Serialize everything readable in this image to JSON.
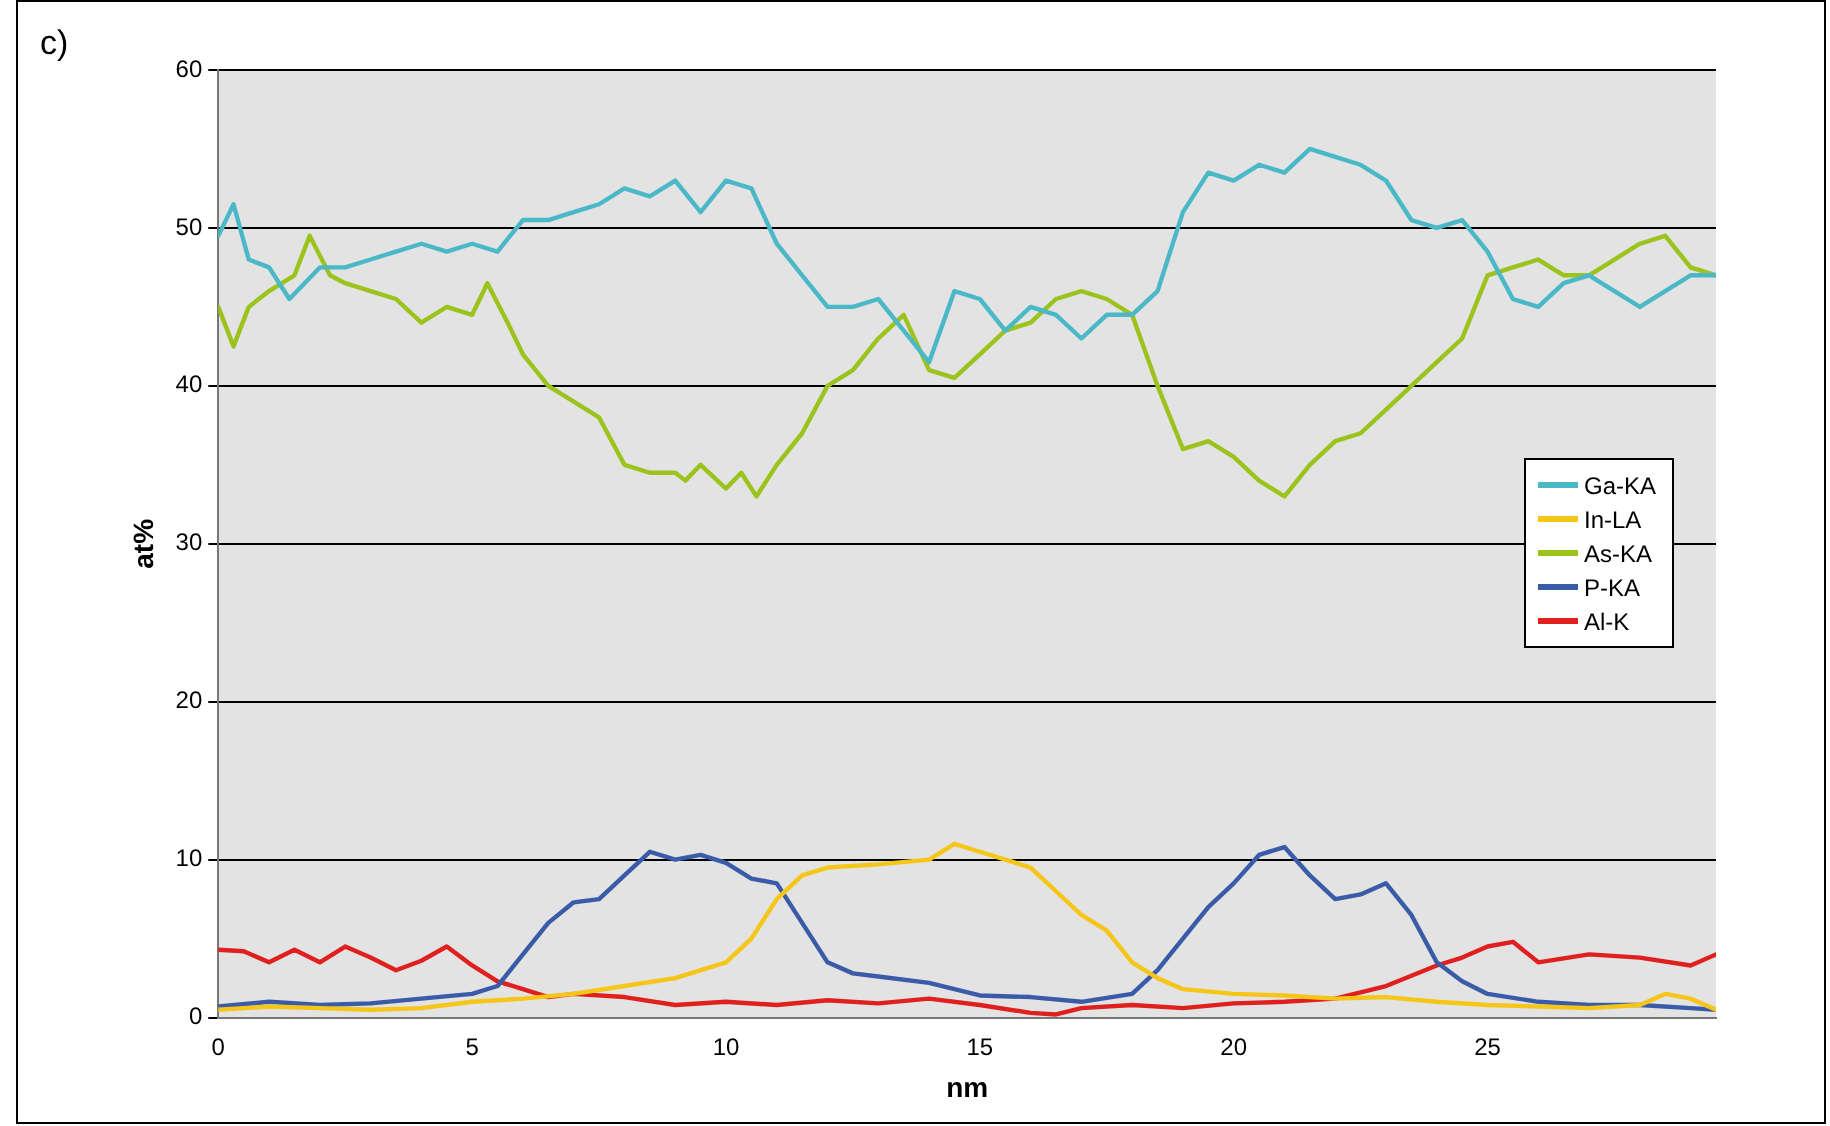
{
  "chart_data": {
    "type": "line",
    "title": "c)",
    "xlabel": "nm",
    "ylabel": "at%",
    "xlim": [
      0,
      29.5
    ],
    "xticks": [
      0,
      5,
      10,
      15,
      20,
      25
    ],
    "ylim": [
      0,
      60
    ],
    "yticks": [
      0,
      10,
      20,
      30,
      40,
      50,
      60
    ],
    "grid": "y",
    "legend": "right",
    "marker": "none",
    "line_style": "solid",
    "series": [
      {
        "name": "Ga-KA",
        "color": "#4bb8c8",
        "x": [
          0,
          0.3,
          0.6,
          1,
          1.4,
          2,
          2.5,
          3,
          3.5,
          4,
          4.5,
          5,
          5.5,
          6,
          6.5,
          7,
          7.5,
          8,
          8.5,
          9,
          9.5,
          10,
          10.5,
          11,
          11.5,
          12,
          12.5,
          13,
          13.5,
          14,
          14.5,
          15,
          15.5,
          16,
          16.5,
          17,
          17.5,
          18,
          18.5,
          19,
          19.5,
          20,
          20.5,
          21,
          21.5,
          22,
          22.5,
          23,
          23.5,
          24,
          24.5,
          25,
          25.5,
          26,
          26.5,
          27,
          27.5,
          28,
          28.5,
          29,
          29.5
        ],
        "values": [
          49.5,
          51.5,
          48,
          47.5,
          45.5,
          47.5,
          47.5,
          48,
          48.5,
          49,
          48.5,
          49,
          48.5,
          50.5,
          50.5,
          51,
          51.5,
          52.5,
          52,
          53,
          51,
          53,
          52.5,
          49,
          47,
          45,
          45,
          45.5,
          43.5,
          41.5,
          46,
          45.5,
          43.5,
          45,
          44.5,
          43,
          44.5,
          44.5,
          46,
          51,
          53.5,
          53,
          54,
          53.5,
          55,
          54.5,
          54,
          53,
          50.5,
          50,
          50.5,
          48.5,
          45.5,
          45,
          46.5,
          47,
          46,
          45,
          46,
          47,
          47
        ]
      },
      {
        "name": "In-LA",
        "color": "#f5c518",
        "x": [
          0,
          1,
          2,
          3,
          4,
          5,
          6,
          7,
          8,
          9,
          10,
          10.5,
          11,
          11.5,
          12,
          13,
          14,
          14.5,
          15,
          15.5,
          16,
          16.5,
          17,
          17.5,
          18,
          18.5,
          19,
          20,
          21,
          22,
          23,
          24,
          25,
          26,
          27,
          28,
          28.5,
          29,
          29.5
        ],
        "values": [
          0.5,
          0.7,
          0.6,
          0.5,
          0.6,
          1,
          1.2,
          1.5,
          2,
          2.5,
          3.5,
          5,
          7.5,
          9,
          9.5,
          9.7,
          10,
          11,
          10.5,
          10,
          9.5,
          8,
          6.5,
          5.5,
          3.5,
          2.5,
          1.8,
          1.5,
          1.4,
          1.2,
          1.3,
          1,
          0.8,
          0.7,
          0.6,
          0.8,
          1.5,
          1.2,
          0.5
        ]
      },
      {
        "name": "As-KA",
        "color": "#9bc31c",
        "x": [
          0,
          0.3,
          0.6,
          1,
          1.5,
          1.8,
          2.2,
          2.5,
          3,
          3.5,
          4,
          4.5,
          5,
          5.3,
          5.7,
          6,
          6.5,
          7,
          7.5,
          8,
          8.5,
          9,
          9.2,
          9.5,
          10,
          10.3,
          10.6,
          11,
          11.5,
          12,
          12.5,
          13,
          13.5,
          14,
          14.5,
          15,
          15.5,
          16,
          16.5,
          17,
          17.5,
          18,
          18.5,
          19,
          19.5,
          20,
          20.5,
          21,
          21.5,
          22,
          22.5,
          23,
          23.5,
          24,
          24.5,
          25,
          25.5,
          26,
          26.5,
          27,
          27.5,
          28,
          28.5,
          29,
          29.5
        ],
        "values": [
          45,
          42.5,
          45,
          46,
          47,
          49.5,
          47,
          46.5,
          46,
          45.5,
          44,
          45,
          44.5,
          46.5,
          44,
          42,
          40,
          39,
          38,
          35,
          34.5,
          34.5,
          34,
          35,
          33.5,
          34.5,
          33,
          35,
          37,
          40,
          41,
          43,
          44.5,
          41,
          40.5,
          42,
          43.5,
          44,
          45.5,
          46,
          45.5,
          44.5,
          40,
          36,
          36.5,
          35.5,
          34,
          33,
          35,
          36.5,
          37,
          38.5,
          40,
          41.5,
          43,
          47,
          47.5,
          48,
          47,
          47,
          48,
          49,
          49.5,
          47.5,
          47
        ]
      },
      {
        "name": "P-KA",
        "color": "#3a5ba8",
        "x": [
          0,
          1,
          2,
          3,
          4,
          5,
          5.5,
          6,
          6.5,
          7,
          7.5,
          8,
          8.5,
          9,
          9.5,
          10,
          10.5,
          11,
          11.5,
          12,
          12.5,
          13,
          14,
          15,
          16,
          17,
          18,
          18.5,
          19,
          19.5,
          20,
          20.5,
          21,
          21.5,
          22,
          22.5,
          23,
          23.5,
          24,
          24.5,
          25,
          26,
          27,
          28,
          29,
          29.5
        ],
        "values": [
          0.7,
          1,
          0.8,
          0.9,
          1.2,
          1.5,
          2,
          4,
          6,
          7.3,
          7.5,
          9,
          10.5,
          10,
          10.3,
          9.8,
          8.8,
          8.5,
          6,
          3.5,
          2.8,
          2.6,
          2.2,
          1.4,
          1.3,
          1,
          1.5,
          3,
          5,
          7,
          8.5,
          10.3,
          10.8,
          9,
          7.5,
          7.8,
          8.5,
          6.5,
          3.5,
          2.3,
          1.5,
          1,
          0.8,
          0.8,
          0.6,
          0.5
        ]
      },
      {
        "name": "Al-K",
        "color": "#e0201f",
        "x": [
          0,
          0.5,
          1,
          1.5,
          2,
          2.5,
          3,
          3.5,
          4,
          4.5,
          5,
          5.5,
          6,
          6.5,
          7,
          8,
          9,
          10,
          11,
          12,
          13,
          14,
          15,
          16,
          16.5,
          17,
          18,
          19,
          20,
          21,
          22,
          23,
          24,
          24.5,
          25,
          25.5,
          26,
          27,
          28,
          29,
          29.5
        ],
        "values": [
          4.3,
          4.2,
          3.5,
          4.3,
          3.5,
          4.5,
          3.8,
          3,
          3.6,
          4.5,
          3.3,
          2.3,
          1.8,
          1.3,
          1.5,
          1.3,
          0.8,
          1,
          0.8,
          1.1,
          0.9,
          1.2,
          0.8,
          0.3,
          0.2,
          0.6,
          0.8,
          0.6,
          0.9,
          1,
          1.2,
          2,
          3.3,
          3.8,
          4.5,
          4.8,
          3.5,
          4,
          3.8,
          3.3,
          4
        ]
      }
    ]
  }
}
